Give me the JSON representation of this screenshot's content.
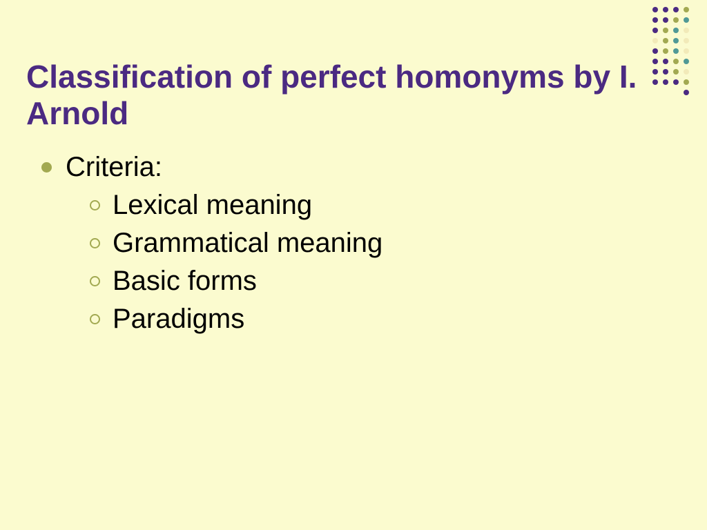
{
  "background_color": "#fbfbcf",
  "title": {
    "text": "Classification of perfect homonyms by I. Arnold",
    "color": "#4b2a82",
    "fontsize": 46,
    "fontweight": "bold"
  },
  "decor": {
    "colors": {
      "purple": "#4b2a82",
      "olive": "#a2a951",
      "teal": "#509996",
      "cream": "#f2eab9"
    },
    "rows": [
      [
        "purple",
        "purple",
        "purple",
        "olive"
      ],
      [
        "purple",
        "purple",
        "olive",
        "teal"
      ],
      [
        "purple",
        "olive",
        "teal",
        "cream"
      ],
      [
        "cream",
        "olive",
        "teal",
        "cream"
      ],
      [
        "purple",
        "olive",
        "teal",
        "cream"
      ],
      [
        "purple",
        "purple",
        "olive",
        "teal"
      ],
      [
        "purple",
        "purple",
        "olive",
        "cream"
      ],
      [
        "purple",
        "purple",
        "purple",
        "olive"
      ],
      [
        "purple"
      ]
    ]
  },
  "bullets": {
    "lvl1_fill": "#a2a951",
    "lvl2_stroke": "#a2a951",
    "text_color": "#000000",
    "text_fontsize": 40,
    "lvl1": {
      "label": "Criteria:"
    },
    "lvl2": [
      {
        "label": "Lexical meaning"
      },
      {
        "label": "Grammatical meaning"
      },
      {
        "label": "Basic forms"
      },
      {
        "label": "Paradigms"
      }
    ]
  }
}
